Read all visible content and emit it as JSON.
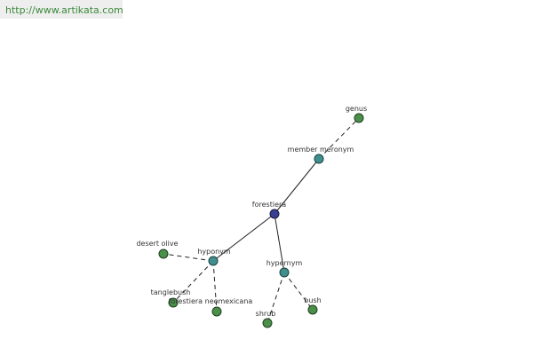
{
  "header": {
    "url": "http://www.artikata.com"
  },
  "nodes": [
    {
      "label": "forestiera"
    },
    {
      "label": "member meronym"
    },
    {
      "label": "genus"
    },
    {
      "label": "hyponym"
    },
    {
      "label": "hypernym"
    },
    {
      "label": "desert olive"
    },
    {
      "label": "tanglebush"
    },
    {
      "label": "forestiera neomexicana"
    },
    {
      "label": "shrub"
    },
    {
      "label": "bush"
    }
  ]
}
